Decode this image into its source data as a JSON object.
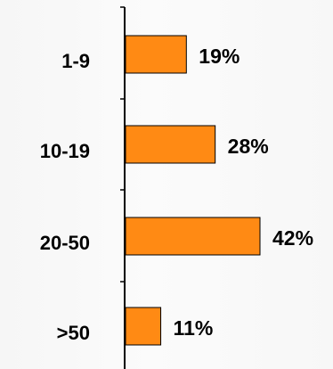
{
  "chart_data": {
    "type": "bar",
    "orientation": "horizontal",
    "categories": [
      "1-9",
      "10-19",
      "20-50",
      ">50"
    ],
    "values": [
      19,
      28,
      42,
      11
    ],
    "value_labels": [
      "19%",
      "28%",
      "42%",
      "11%"
    ],
    "unit": "%",
    "xlim": [
      0,
      42
    ],
    "title": "",
    "xlabel": "",
    "ylabel": "",
    "grid": false,
    "legend": "none",
    "colors": {
      "bar_fill": "#ff8a14",
      "bar_stroke": "#000000",
      "text": "#000000",
      "axis": "#000000"
    }
  }
}
